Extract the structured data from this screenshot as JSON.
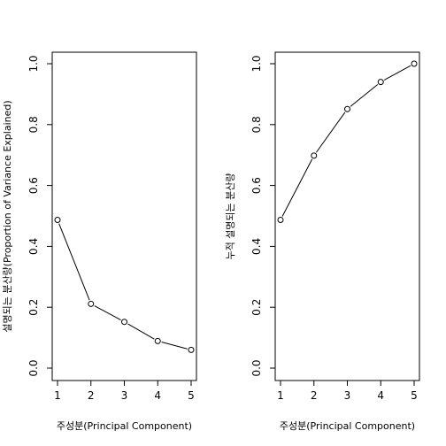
{
  "chart_data": [
    {
      "type": "line",
      "markers": "open-circle",
      "x": [
        1,
        2,
        3,
        4,
        5
      ],
      "values": [
        0.487,
        0.211,
        0.152,
        0.089,
        0.06
      ],
      "xlabel": "주성분(Principal Component)",
      "ylabel": "설명되는 분산량(Proportion of Variance Explained)",
      "xlim": [
        1,
        5
      ],
      "ylim": [
        0,
        1
      ],
      "xticks": [
        "1",
        "2",
        "3",
        "4",
        "5"
      ],
      "yticks": [
        "0.0",
        "0.2",
        "0.4",
        "0.6",
        "0.8",
        "1.0"
      ],
      "grid": false,
      "legend": "none"
    },
    {
      "type": "line",
      "markers": "open-circle",
      "x": [
        1,
        2,
        3,
        4,
        5
      ],
      "values": [
        0.487,
        0.698,
        0.851,
        0.94,
        1.0
      ],
      "xlabel": "주성분(Principal Component)",
      "ylabel": "누적 설명되는 분산량",
      "xlim": [
        1,
        5
      ],
      "ylim": [
        0,
        1
      ],
      "xticks": [
        "1",
        "2",
        "3",
        "4",
        "5"
      ],
      "yticks": [
        "0.0",
        "0.2",
        "0.4",
        "0.6",
        "0.8",
        "1.0"
      ],
      "grid": false,
      "legend": "none"
    }
  ]
}
